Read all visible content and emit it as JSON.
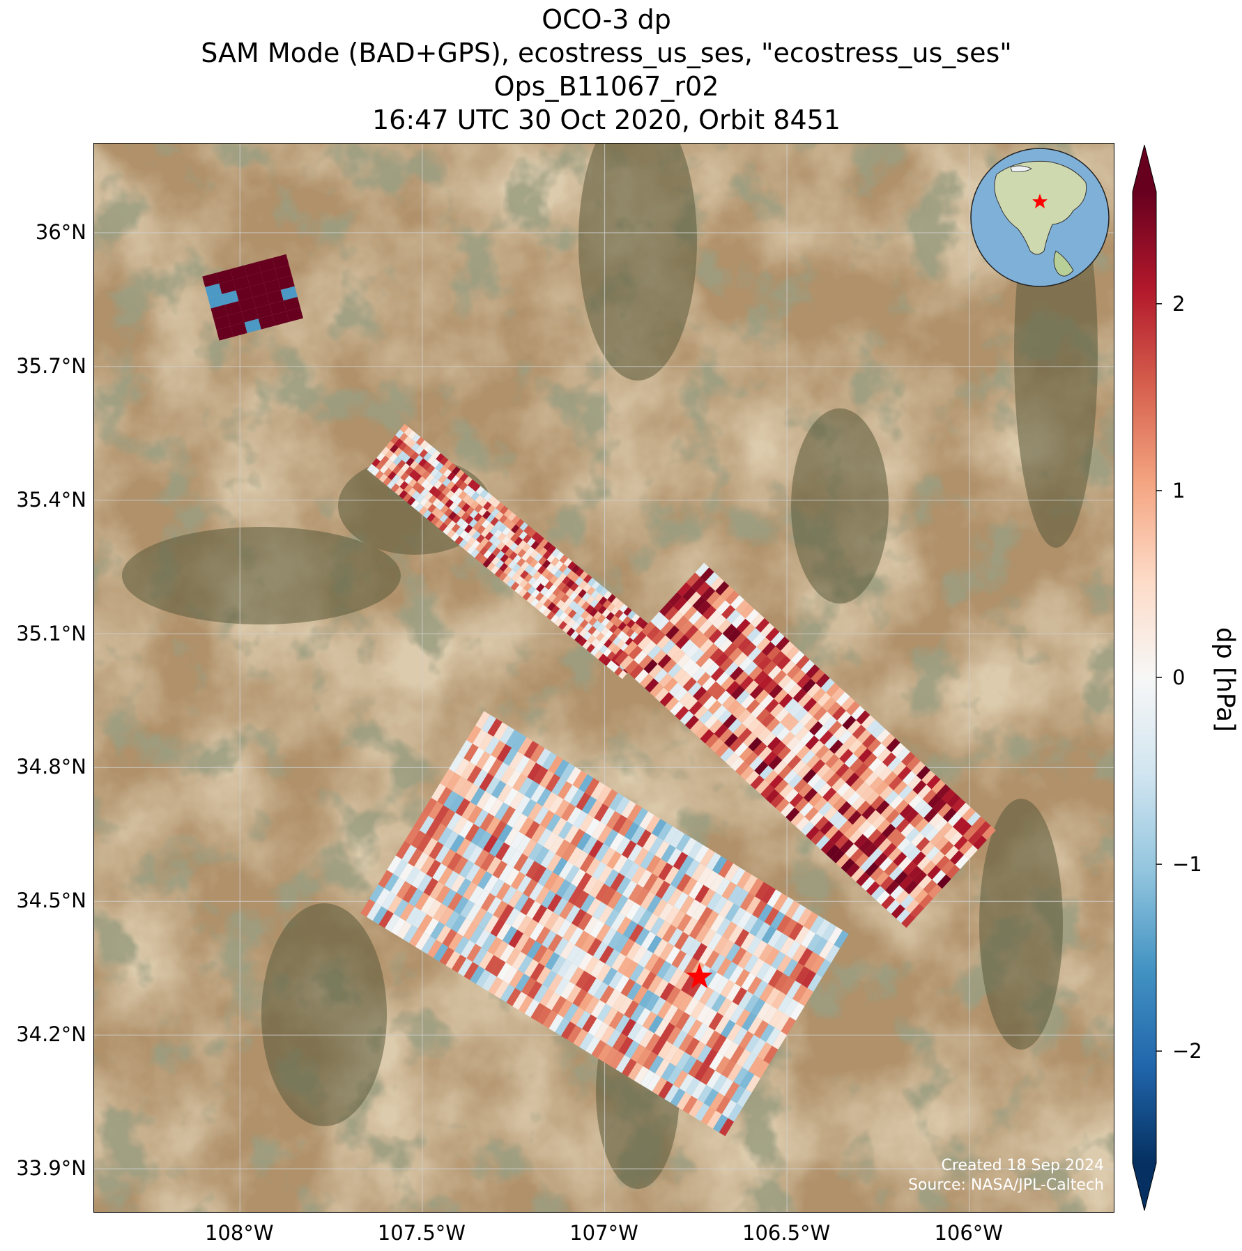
{
  "title": {
    "line1": "OCO-3 dp",
    "line2": "SAM Mode (BAD+GPS), ecostress_us_ses, \"ecostress_us_ses\"",
    "line3": "Ops_B11067_r02",
    "line4": "16:47 UTC 30 Oct 2020, Orbit 8451"
  },
  "map": {
    "lon_range": [
      -108.4,
      -105.6
    ],
    "lat_range": [
      33.8,
      36.2
    ],
    "lat_ticks": [
      "36°N",
      "35.7°N",
      "35.4°N",
      "35.1°N",
      "34.8°N",
      "34.5°N",
      "34.2°N",
      "33.9°N"
    ],
    "lat_tick_values": [
      36.0,
      35.7,
      35.4,
      35.1,
      34.8,
      34.5,
      34.2,
      33.9
    ],
    "lon_ticks": [
      "108°W",
      "107.5°W",
      "107°W",
      "106.5°W",
      "106°W"
    ],
    "lon_tick_values": [
      -108.0,
      -107.5,
      -107.0,
      -106.5,
      -106.0
    ],
    "target": {
      "lon": -106.74,
      "lat": 34.33,
      "marker": "red-star-icon"
    },
    "gridlines": true,
    "basemap": "satellite-imagery",
    "inset_globe": {
      "marker": "red-star-icon",
      "region": "North America"
    }
  },
  "credit": {
    "created": "Created 18 Sep 2024",
    "source": "Source: NASA/JPL-Caltech"
  },
  "colorbar": {
    "label": "dp [hPa]",
    "ticks": [
      "2",
      "1",
      "0",
      "−1",
      "−2"
    ],
    "tick_values": [
      2,
      1,
      0,
      -1,
      -2
    ],
    "range": [
      -2.6,
      2.6
    ],
    "colormap": "RdBu_r",
    "extend": "both"
  },
  "chart_data": {
    "type": "heatmap",
    "variable": "dp",
    "units": "hPa",
    "colormap": "RdBu_r",
    "vmin": -2.6,
    "vmax": 2.6,
    "swaths": [
      {
        "lon_start": -108.08,
        "lat_start": 35.83,
        "lon_end": -107.85,
        "lat_end": 35.88,
        "dominant_dp": 2.6
      },
      {
        "lon_start": -107.6,
        "lat_start": 35.52,
        "lon_end": -106.9,
        "lat_end": 35.05,
        "dominant_dp": 0.8
      },
      {
        "lon_start": -106.85,
        "lat_start": 35.15,
        "lon_end": -106.05,
        "lat_end": 34.55,
        "dominant_dp": 1.0
      },
      {
        "lon_start": -107.5,
        "lat_start": 34.7,
        "lon_end": -106.5,
        "lat_end": 34.2,
        "dominant_dp": 0.3
      }
    ],
    "dp_range_observed": [
      -2.6,
      2.6
    ]
  }
}
